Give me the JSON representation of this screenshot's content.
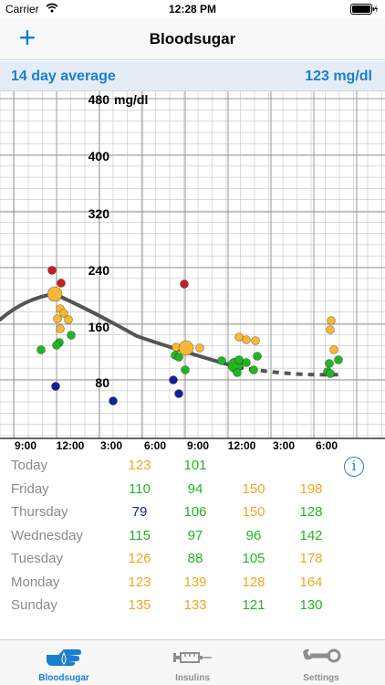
{
  "status_bar": {
    "carrier": "Carrier",
    "time": "12:28 PM"
  },
  "nav": {
    "title": "Bloodsugar",
    "add_label": "+"
  },
  "average": {
    "label": "14 day average",
    "value": "123 mg/dl"
  },
  "chart_data": {
    "type": "scatter",
    "ylabel_unit": "mg/dl",
    "y_ticks": [
      "480",
      "400",
      "320",
      "240",
      "160",
      "80"
    ],
    "x_ticks": [
      "9:00",
      "12:00",
      "3:00",
      "6:00",
      "9:00",
      "12:00",
      "3:00",
      "6:00"
    ],
    "colors": {
      "high": "#c42020",
      "elevated": "#f5b935",
      "normal": "#22b522",
      "low": "#10229a",
      "trend": "#555555",
      "grid": "#c4c4c4"
    }
  },
  "table": {
    "info_label": "i",
    "colors": {
      "elevated": "#f0a820",
      "normal": "#22b522",
      "low": "#10229a"
    },
    "rows": [
      {
        "day": "Today",
        "values": [
          {
            "v": "123",
            "c": "elevated"
          },
          {
            "v": "101",
            "c": "normal"
          },
          {
            "v": "",
            "c": "normal"
          },
          {
            "v": "",
            "c": "normal"
          }
        ]
      },
      {
        "day": "Friday",
        "values": [
          {
            "v": "110",
            "c": "normal"
          },
          {
            "v": "94",
            "c": "normal"
          },
          {
            "v": "150",
            "c": "elevated"
          },
          {
            "v": "198",
            "c": "elevated"
          }
        ]
      },
      {
        "day": "Thursday",
        "values": [
          {
            "v": "79",
            "c": "low"
          },
          {
            "v": "106",
            "c": "normal"
          },
          {
            "v": "150",
            "c": "elevated"
          },
          {
            "v": "128",
            "c": "normal"
          }
        ]
      },
      {
        "day": "Wednesday",
        "values": [
          {
            "v": "115",
            "c": "normal"
          },
          {
            "v": "97",
            "c": "normal"
          },
          {
            "v": "96",
            "c": "normal"
          },
          {
            "v": "142",
            "c": "normal"
          }
        ]
      },
      {
        "day": "Tuesday",
        "values": [
          {
            "v": "126",
            "c": "elevated"
          },
          {
            "v": "88",
            "c": "normal"
          },
          {
            "v": "105",
            "c": "normal"
          },
          {
            "v": "178",
            "c": "elevated"
          }
        ]
      },
      {
        "day": "Monday",
        "values": [
          {
            "v": "123",
            "c": "elevated"
          },
          {
            "v": "139",
            "c": "elevated"
          },
          {
            "v": "128",
            "c": "elevated"
          },
          {
            "v": "164",
            "c": "elevated"
          }
        ]
      },
      {
        "day": "Sunday",
        "values": [
          {
            "v": "135",
            "c": "elevated"
          },
          {
            "v": "133",
            "c": "elevated"
          },
          {
            "v": "121",
            "c": "normal"
          },
          {
            "v": "130",
            "c": "normal"
          }
        ]
      }
    ]
  },
  "tabs": [
    {
      "label": "Bloodsugar",
      "icon": "blood-drop-hand-icon",
      "active": true
    },
    {
      "label": "Insulins",
      "icon": "syringe-icon",
      "active": false
    },
    {
      "label": "Settings",
      "icon": "wrench-icon",
      "active": false
    }
  ],
  "tab_colors": {
    "active": "#1a7fcf",
    "inactive": "#8e8e8e"
  }
}
